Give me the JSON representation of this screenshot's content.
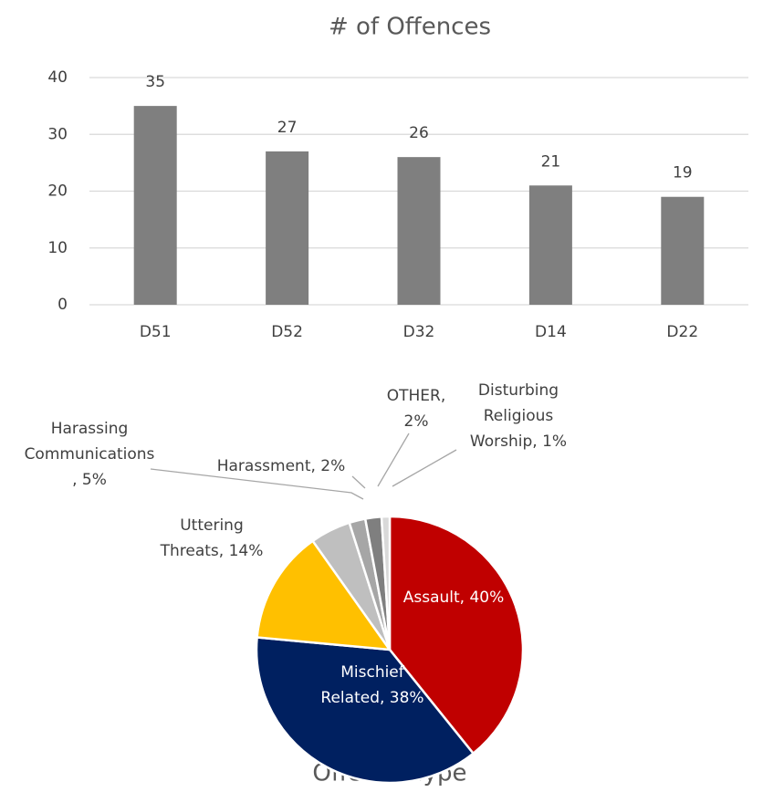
{
  "chart_data": [
    {
      "type": "bar",
      "title": "# of Offences",
      "categories": [
        "D51",
        "D52",
        "D32",
        "D14",
        "D22"
      ],
      "values": [
        35,
        27,
        26,
        21,
        19
      ],
      "color": "#7f7f7f",
      "ylim": [
        0,
        40
      ],
      "yticks": [
        0,
        10,
        20,
        30,
        40
      ],
      "grid": true
    },
    {
      "type": "pie",
      "title": "Offence Type",
      "values": [
        40,
        38,
        14,
        5,
        2,
        2,
        1
      ],
      "value_labels": [
        [
          "Assault, 40%"
        ],
        [
          "Mischief",
          "Related, 38%"
        ],
        [
          "Uttering",
          "Threats, 14%"
        ],
        [
          "Harassing",
          "Communications",
          ", 5%"
        ],
        [
          "Harassment, 2%"
        ],
        [
          "OTHER,",
          "2%"
        ],
        [
          "Disturbing",
          "Religious",
          "Worship, 1%"
        ]
      ],
      "colors": [
        "#c00000",
        "#002060",
        "#ffc000",
        "#bfbfbf",
        "#a6a6a6",
        "#7f7f7f",
        "#d9d9d9"
      ]
    }
  ]
}
